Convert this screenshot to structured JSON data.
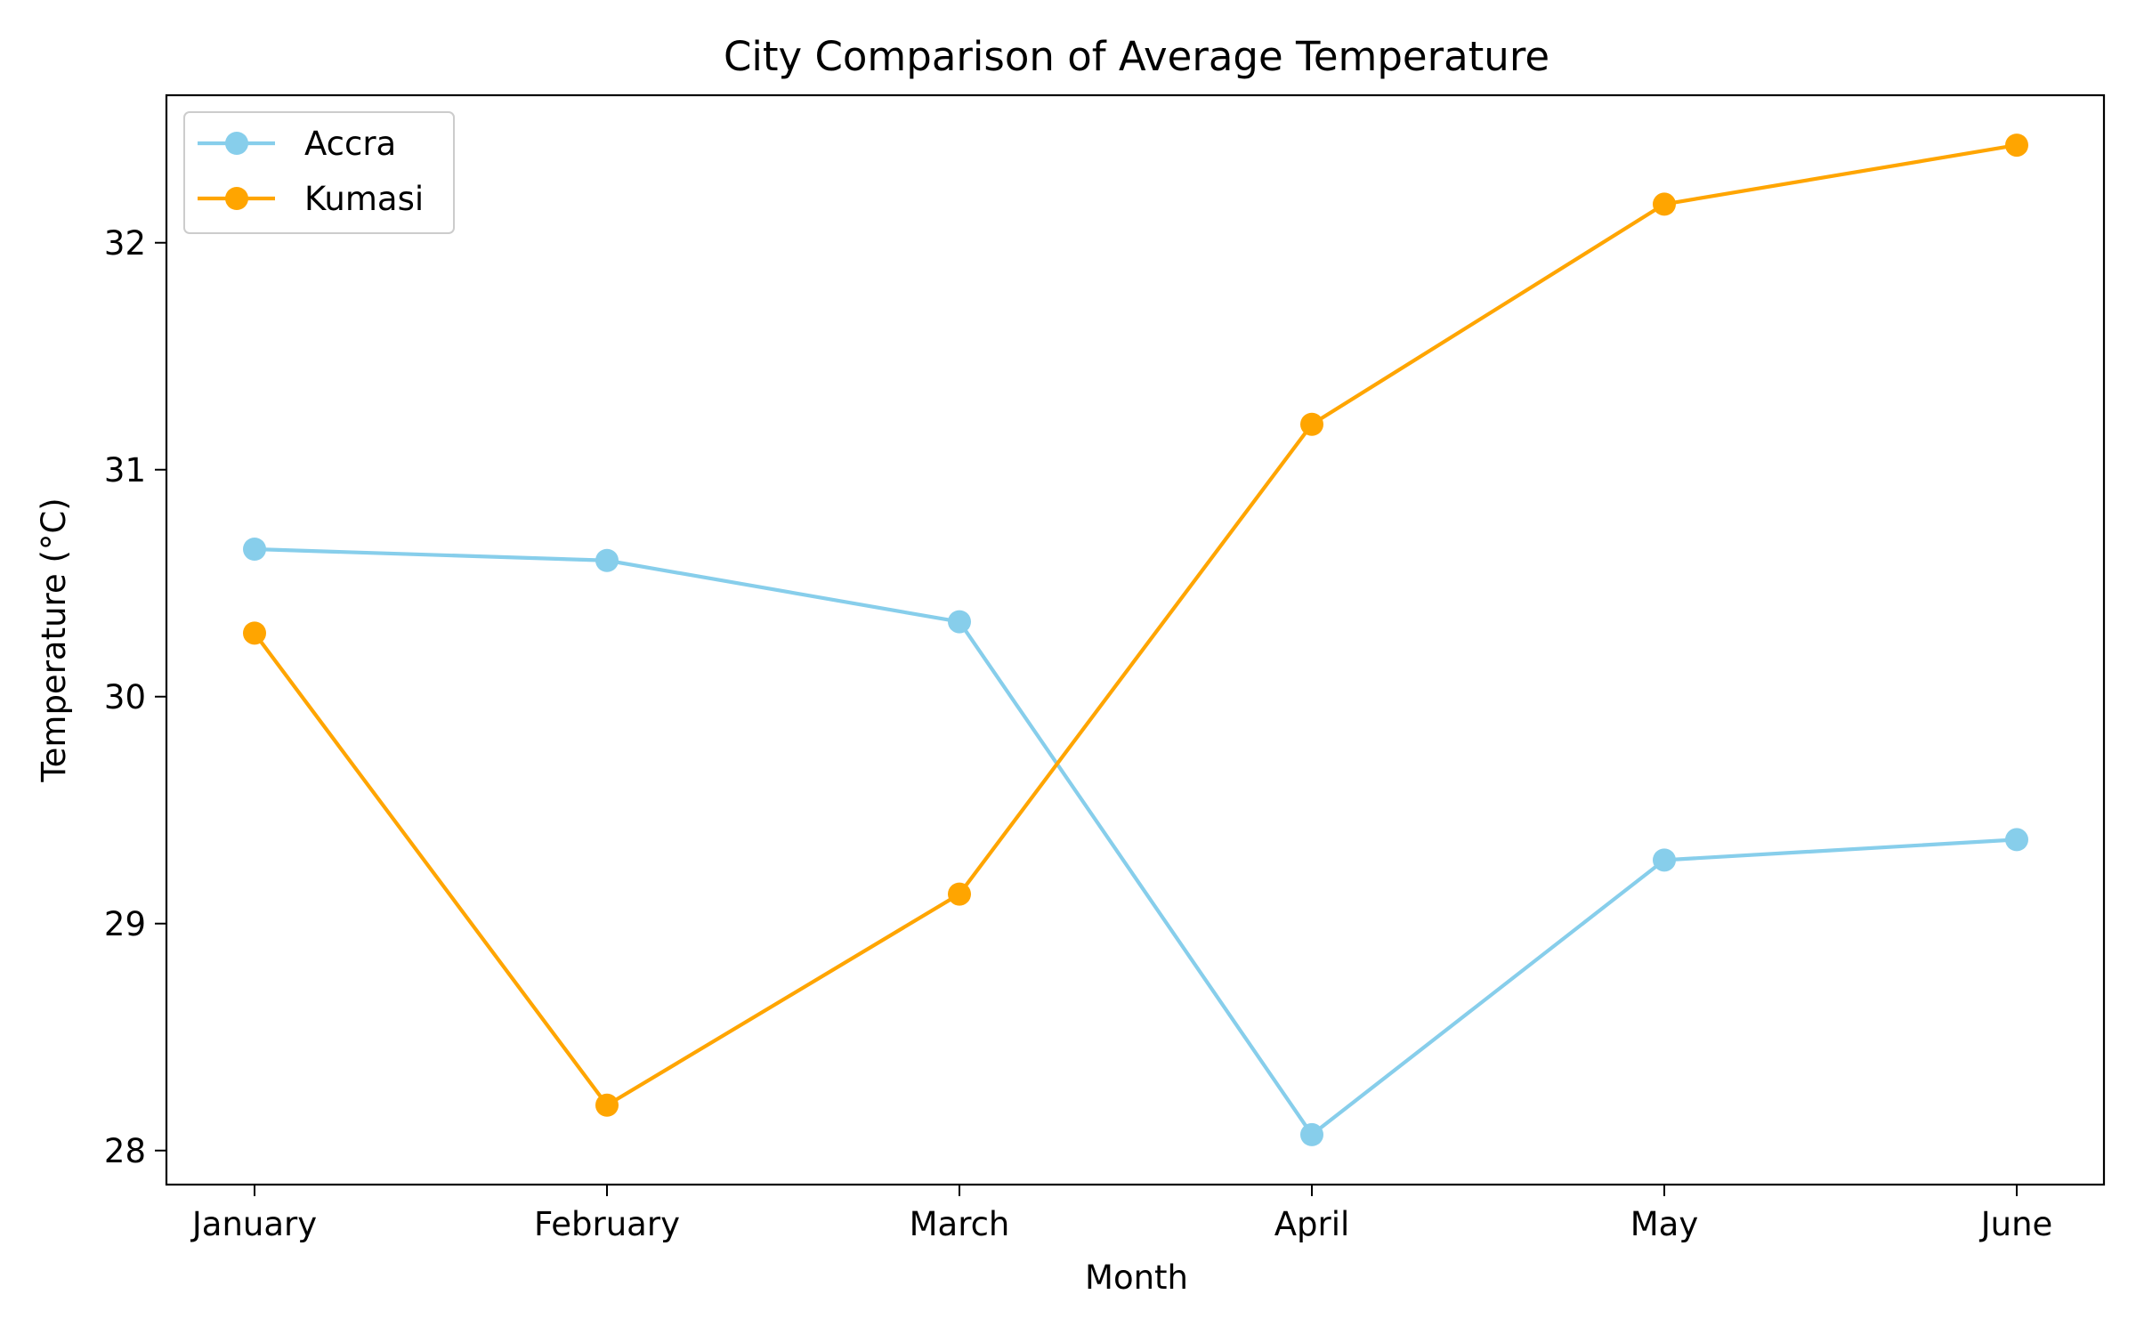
{
  "chart_data": {
    "type": "line",
    "title": "City Comparison of Average Temperature",
    "xlabel": "Month",
    "ylabel": "Temperature (°C)",
    "categories": [
      "January",
      "February",
      "March",
      "April",
      "May",
      "June"
    ],
    "ylim": [
      27.85,
      32.65
    ],
    "yticks": [
      28,
      29,
      30,
      31,
      32
    ],
    "grid": false,
    "legend_position": "upper left",
    "series": [
      {
        "name": "Accra",
        "color": "#87CEEB",
        "marker": "circle",
        "values": [
          30.65,
          30.6,
          30.33,
          28.07,
          29.28,
          29.37
        ]
      },
      {
        "name": "Kumasi",
        "color": "#FFA500",
        "marker": "circle",
        "values": [
          30.28,
          28.2,
          29.13,
          31.2,
          32.17,
          32.43
        ]
      }
    ]
  }
}
